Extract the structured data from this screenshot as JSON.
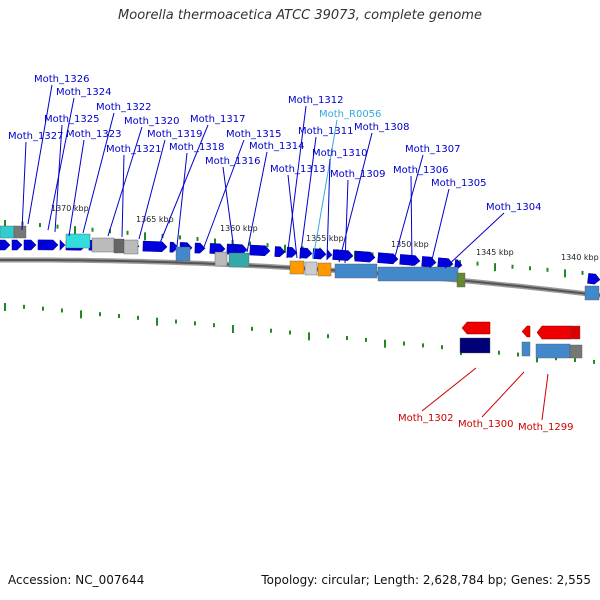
{
  "title": "Moorella thermoacetica ATCC 39073, complete genome",
  "accession": "Accession: NC_007644",
  "topology": "Topology: circular; Length: 2,628,784 bp; Genes: 2,555",
  "colors": {
    "forward_gene": "#0000dd",
    "forward_label": "#0000cc",
    "rna_label": "#33aadd",
    "reverse_gene": "#ee0000",
    "reverse_label": "#cc0000",
    "tick": "#228822"
  },
  "kbp_labels": [
    "1370 kbp",
    "1365 kbp",
    "1360 kbp",
    "1355 kbp",
    "1350 kbp",
    "1345 kbp",
    "1340 kbp"
  ],
  "forward_labels": [
    "Moth_1326",
    "Moth_1324",
    "Moth_1325",
    "Moth_1322",
    "Moth_1327",
    "Moth_1323",
    "Moth_1320",
    "Moth_1321",
    "Moth_1319",
    "Moth_1317",
    "Moth_1318",
    "Moth_1315",
    "Moth_1316",
    "Moth_1314",
    "Moth_1312",
    "Moth_R0056",
    "Moth_1311",
    "Moth_1308",
    "Moth_1310",
    "Moth_1313",
    "Moth_1309",
    "Moth_1307",
    "Moth_1306",
    "Moth_1305",
    "Moth_1304"
  ],
  "reverse_labels": [
    "Moth_1302",
    "Moth_1300",
    "Moth_1299"
  ]
}
